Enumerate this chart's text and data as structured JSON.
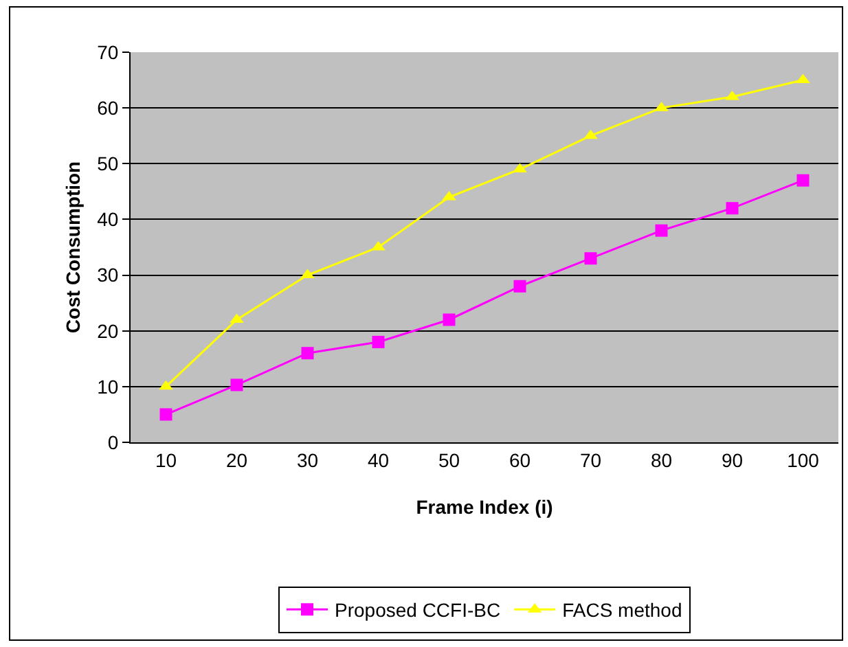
{
  "chart_data": {
    "type": "line",
    "xlabel": "Frame Index (i)",
    "ylabel": "Cost Consumption",
    "categories": [
      "10",
      "20",
      "30",
      "40",
      "50",
      "60",
      "70",
      "80",
      "90",
      "100"
    ],
    "series": [
      {
        "name": "Proposed CCFI-BC",
        "color": "#ff00ff",
        "marker": "square",
        "values": [
          5,
          10.3,
          16,
          18,
          22,
          28,
          33,
          38,
          42,
          47
        ]
      },
      {
        "name": "FACS method",
        "color": "#ffff00",
        "marker": "triangle",
        "values": [
          10,
          22,
          30,
          35,
          44,
          49,
          55,
          60,
          62,
          65
        ]
      }
    ],
    "ylim": [
      0,
      70
    ],
    "yticks": [
      0,
      10,
      20,
      30,
      40,
      50,
      60,
      70
    ],
    "grid": "y",
    "legend": "bottom",
    "line_style": "solid"
  }
}
